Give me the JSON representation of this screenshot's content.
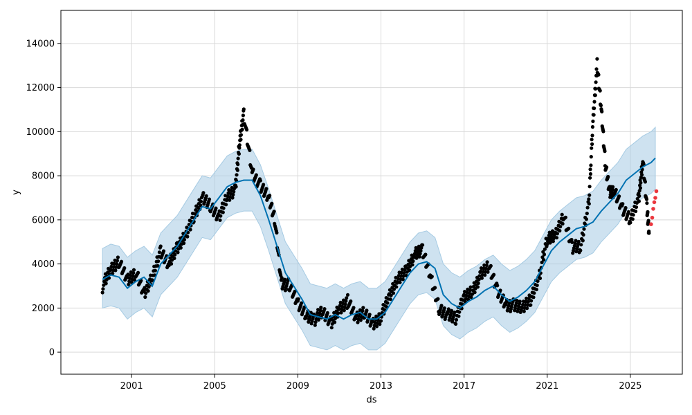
{
  "chart_data": {
    "type": "line",
    "xlabel": "ds",
    "ylabel": "y",
    "x_tick_labels": [
      "2001",
      "2005",
      "2009",
      "2013",
      "2017",
      "2021",
      "2025"
    ],
    "x_tick_values": [
      2001,
      2005,
      2009,
      2013,
      2017,
      2021,
      2025
    ],
    "y_tick_labels": [
      "0",
      "2000",
      "4000",
      "6000",
      "8000",
      "10000",
      "12000",
      "14000"
    ],
    "y_tick_values": [
      0,
      2000,
      4000,
      6000,
      8000,
      10000,
      12000,
      14000
    ],
    "xlim": [
      1997.6,
      2027.5
    ],
    "ylim": [
      -1000,
      15500
    ],
    "grid": true,
    "series": [
      {
        "kind": "observed",
        "color": "#000000",
        "x": [
          1999.6,
          2000.0,
          2000.4,
          2000.8,
          2001.2,
          2001.6,
          2002.0,
          2002.4,
          2002.8,
          2003.2,
          2003.6,
          2004.0,
          2004.4,
          2004.8,
          2005.2,
          2005.6,
          2006.0,
          2006.2,
          2006.4,
          2006.8,
          2007.2,
          2007.6,
          2007.9,
          2008.2,
          2008.6,
          2009.0,
          2009.4,
          2009.8,
          2010.2,
          2010.6,
          2011.0,
          2011.4,
          2011.8,
          2012.2,
          2012.6,
          2013.0,
          2013.4,
          2013.8,
          2014.2,
          2014.6,
          2015.0,
          2015.4,
          2015.8,
          2016.2,
          2016.6,
          2017.0,
          2017.4,
          2017.8,
          2018.2,
          2018.6,
          2019.0,
          2019.4,
          2019.8,
          2020.2,
          2020.6,
          2021.0,
          2021.4,
          2021.8,
          2022.2,
          2022.6,
          2023.0,
          2023.2,
          2023.4,
          2023.6,
          2023.8,
          2024.0,
          2024.2,
          2024.6,
          2025.0,
          2025.4,
          2025.6,
          2025.8,
          2025.9
        ],
        "y": [
          3000,
          3700,
          4100,
          3300,
          3600,
          2600,
          3400,
          4600,
          4000,
          4700,
          5300,
          6200,
          7000,
          6600,
          6100,
          7100,
          7400,
          9500,
          10800,
          8200,
          7500,
          7000,
          6000,
          3200,
          3000,
          2200,
          1700,
          1500,
          1800,
          1300,
          2000,
          2300,
          1500,
          1800,
          1300,
          1600,
          2500,
          3300,
          3700,
          4400,
          4600,
          3400,
          2000,
          1700,
          1500,
          2500,
          2800,
          3500,
          3900,
          2800,
          2200,
          2100,
          2000,
          2400,
          3400,
          5100,
          5300,
          6200,
          4800,
          4700,
          6700,
          10500,
          13000,
          11000,
          8500,
          7300,
          7300,
          6500,
          6000,
          7000,
          8700,
          6500,
          5400
        ]
      },
      {
        "kind": "forecast",
        "color": "#0072b2",
        "x": [
          1999.6,
          2000.0,
          2000.4,
          2000.8,
          2001.2,
          2001.6,
          2002.0,
          2002.4,
          2002.8,
          2003.2,
          2003.6,
          2004.0,
          2004.4,
          2004.8,
          2005.2,
          2005.6,
          2006.0,
          2006.4,
          2006.8,
          2007.2,
          2007.6,
          2008.0,
          2008.4,
          2008.8,
          2009.2,
          2009.6,
          2010.0,
          2010.4,
          2010.8,
          2011.2,
          2011.6,
          2012.0,
          2012.4,
          2012.8,
          2013.2,
          2013.6,
          2014.0,
          2014.4,
          2014.8,
          2015.2,
          2015.6,
          2016.0,
          2016.4,
          2016.8,
          2017.2,
          2017.6,
          2018.0,
          2018.4,
          2018.8,
          2019.2,
          2019.6,
          2020.0,
          2020.4,
          2020.8,
          2021.2,
          2021.6,
          2022.0,
          2022.4,
          2022.8,
          2023.2,
          2023.6,
          2024.0,
          2024.4,
          2024.8,
          2025.2,
          2025.6,
          2026.0,
          2026.2
        ],
        "y": [
          3300,
          3500,
          3400,
          2900,
          3200,
          3400,
          3000,
          4000,
          4400,
          4800,
          5400,
          6000,
          6600,
          6500,
          7000,
          7500,
          7700,
          7800,
          7800,
          7100,
          6000,
          4800,
          3600,
          3000,
          2400,
          1700,
          1600,
          1500,
          1700,
          1500,
          1700,
          1800,
          1500,
          1500,
          1800,
          2400,
          3000,
          3600,
          4000,
          4100,
          3800,
          2600,
          2200,
          2000,
          2300,
          2500,
          2800,
          3000,
          2600,
          2300,
          2500,
          2800,
          3200,
          3900,
          4600,
          5000,
          5300,
          5600,
          5700,
          5900,
          6400,
          6800,
          7200,
          7800,
          8100,
          8400,
          8600,
          8800
        ]
      }
    ],
    "band": {
      "color": "#a6cbe3",
      "x": [
        1999.6,
        2000.0,
        2000.4,
        2000.8,
        2001.2,
        2001.6,
        2002.0,
        2002.4,
        2002.8,
        2003.2,
        2003.6,
        2004.0,
        2004.4,
        2004.8,
        2005.2,
        2005.6,
        2006.0,
        2006.4,
        2006.8,
        2007.2,
        2007.6,
        2008.0,
        2008.4,
        2008.8,
        2009.2,
        2009.6,
        2010.0,
        2010.4,
        2010.8,
        2011.2,
        2011.6,
        2012.0,
        2012.4,
        2012.8,
        2013.2,
        2013.6,
        2014.0,
        2014.4,
        2014.8,
        2015.2,
        2015.6,
        2016.0,
        2016.4,
        2016.8,
        2017.2,
        2017.6,
        2018.0,
        2018.4,
        2018.8,
        2019.2,
        2019.6,
        2020.0,
        2020.4,
        2020.8,
        2021.2,
        2021.6,
        2022.0,
        2022.4,
        2022.8,
        2023.2,
        2023.6,
        2024.0,
        2024.4,
        2024.8,
        2025.2,
        2025.6,
        2026.0,
        2026.2
      ],
      "lower": [
        2000,
        2100,
        2000,
        1500,
        1800,
        2000,
        1600,
        2600,
        3000,
        3400,
        4000,
        4600,
        5200,
        5100,
        5600,
        6100,
        6300,
        6400,
        6400,
        5700,
        4600,
        3400,
        2200,
        1600,
        1000,
        300,
        200,
        100,
        300,
        100,
        300,
        400,
        100,
        100,
        400,
        1000,
        1600,
        2200,
        2600,
        2700,
        2400,
        1200,
        800,
        600,
        900,
        1100,
        1400,
        1600,
        1200,
        900,
        1100,
        1400,
        1800,
        2500,
        3200,
        3600,
        3900,
        4200,
        4300,
        4500,
        5000,
        5400,
        5800,
        6400,
        6700,
        7000,
        7200,
        7400
      ],
      "upper": [
        4700,
        4900,
        4800,
        4300,
        4600,
        4800,
        4400,
        5400,
        5800,
        6200,
        6800,
        7400,
        8000,
        7900,
        8400,
        8900,
        9100,
        9200,
        9200,
        8500,
        7400,
        6200,
        5000,
        4400,
        3800,
        3100,
        3000,
        2900,
        3100,
        2900,
        3100,
        3200,
        2900,
        2900,
        3200,
        3800,
        4400,
        5000,
        5400,
        5500,
        5200,
        4000,
        3600,
        3400,
        3700,
        3900,
        4200,
        4400,
        4000,
        3700,
        3900,
        4200,
        4600,
        5300,
        6000,
        6400,
        6700,
        7000,
        7100,
        7300,
        7800,
        8200,
        8600,
        9200,
        9500,
        9800,
        10000,
        10200
      ]
    },
    "highlight_points": {
      "color": "#e8141c",
      "x": [
        2026.0,
        2026.05,
        2026.1,
        2026.15,
        2026.2,
        2026.25
      ],
      "y": [
        5800,
        6100,
        6500,
        6800,
        7000,
        7300
      ]
    }
  }
}
